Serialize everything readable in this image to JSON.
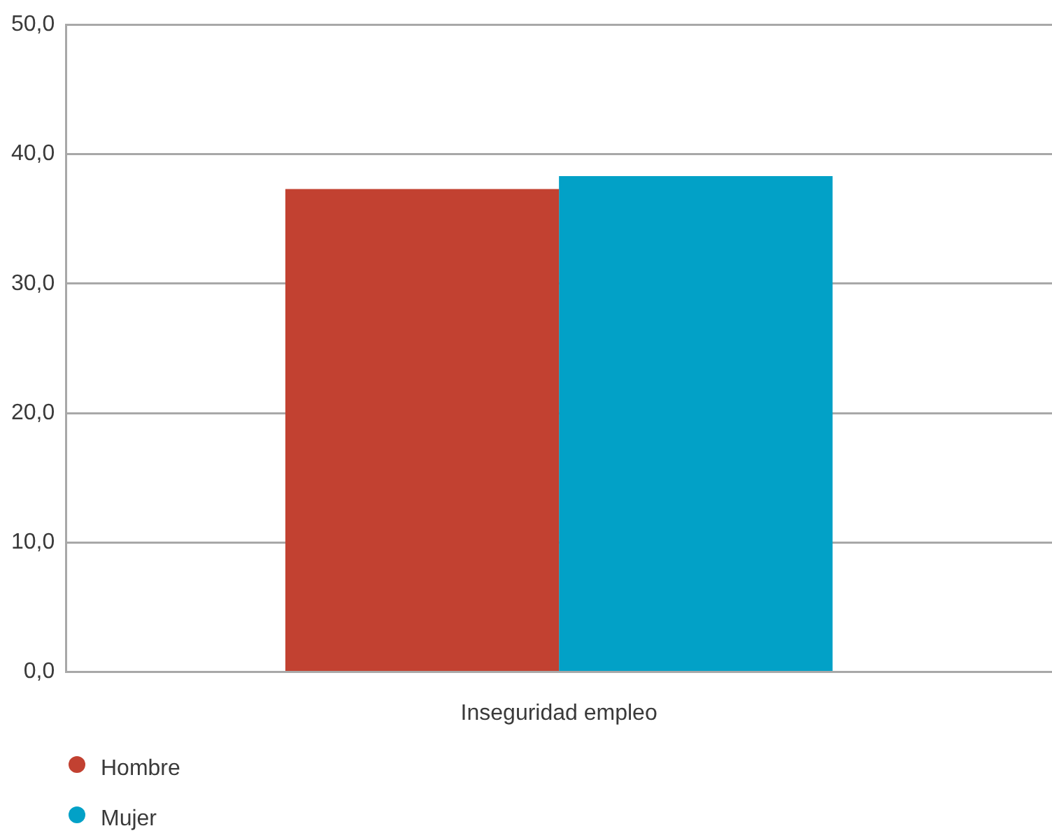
{
  "chart_data": {
    "type": "bar",
    "categories": [
      "Inseguridad empleo"
    ],
    "series": [
      {
        "name": "Hombre",
        "color": "#c24131",
        "values": [
          37.3
        ]
      },
      {
        "name": "Mujer",
        "color": "#02a1c7",
        "values": [
          38.3
        ]
      }
    ],
    "ylim": [
      0,
      50
    ],
    "yticks": [
      {
        "value": 0,
        "label": "0,0"
      },
      {
        "value": 10,
        "label": "10,0"
      },
      {
        "value": 20,
        "label": "20,0"
      },
      {
        "value": 30,
        "label": "30,0"
      },
      {
        "value": 40,
        "label": "40,0"
      },
      {
        "value": 50,
        "label": "50,0"
      }
    ],
    "grid": "y",
    "legend": "bottom left"
  }
}
